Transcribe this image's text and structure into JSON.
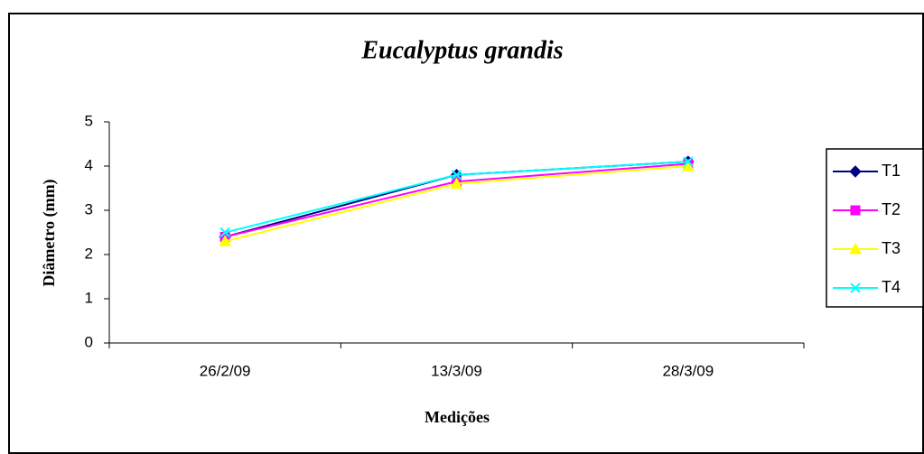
{
  "chart_data": {
    "type": "line",
    "title": "Eucalyptus grandis",
    "xlabel": "Medições",
    "ylabel": "Diâmetro (mm)",
    "categories": [
      "26/2/09",
      "13/3/09",
      "28/3/09"
    ],
    "series": [
      {
        "name": "T1",
        "color": "#000080",
        "marker": "diamond",
        "values": [
          2.4,
          3.8,
          4.1
        ]
      },
      {
        "name": "T2",
        "color": "#ff00ff",
        "marker": "square",
        "values": [
          2.4,
          3.65,
          4.05
        ]
      },
      {
        "name": "T3",
        "color": "#ffff00",
        "marker": "triangle",
        "values": [
          2.3,
          3.6,
          4.0
        ]
      },
      {
        "name": "T4",
        "color": "#00ffff",
        "marker": "x",
        "values": [
          2.5,
          3.8,
          4.1
        ]
      }
    ],
    "ylim": [
      0,
      5
    ],
    "yticks": [
      0,
      1,
      2,
      3,
      4,
      5
    ],
    "legend": "right"
  }
}
